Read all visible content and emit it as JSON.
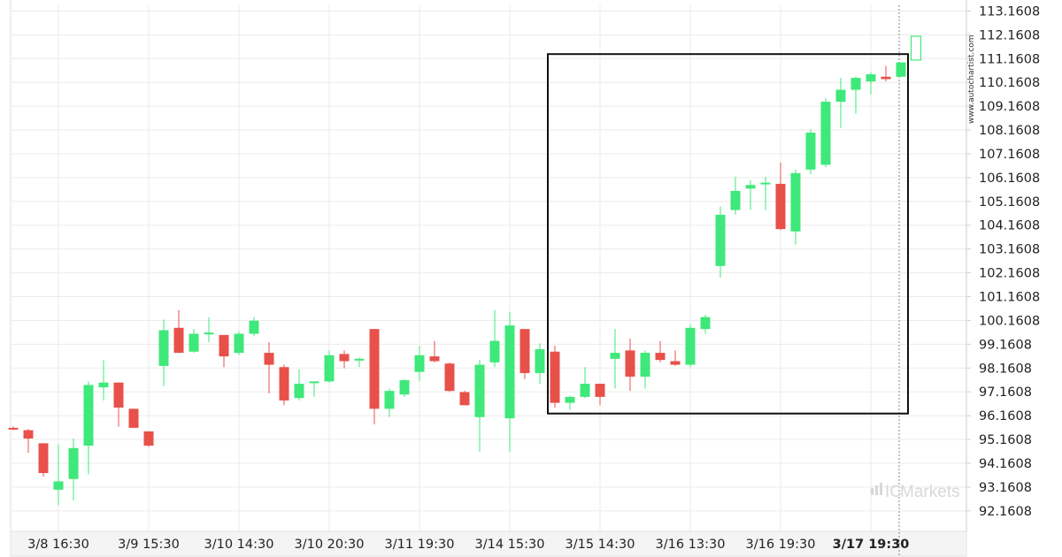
{
  "chart_data": {
    "type": "candlestick",
    "y_ticks": [
      "113.1608",
      "112.1608",
      "111.1608",
      "110.1608",
      "109.1608",
      "108.1608",
      "107.1608",
      "106.1608",
      "105.1608",
      "104.1608",
      "103.1608",
      "102.1608",
      "101.1608",
      "100.1608",
      "99.1608",
      "98.1608",
      "97.1608",
      "96.1608",
      "95.1608",
      "94.1608",
      "93.1608",
      "92.1608"
    ],
    "ylim": [
      91.3,
      113.4
    ],
    "x_ticks": [
      {
        "label": "3/8 16:30",
        "index": 3,
        "bold": false
      },
      {
        "label": "3/9 15:30",
        "index": 9,
        "bold": false
      },
      {
        "label": "3/10 14:30",
        "index": 15,
        "bold": false
      },
      {
        "label": "3/10 20:30",
        "index": 21,
        "bold": false
      },
      {
        "label": "3/11 19:30",
        "index": 27,
        "bold": false
      },
      {
        "label": "3/14 15:30",
        "index": 33,
        "bold": false
      },
      {
        "label": "3/15 14:30",
        "index": 39,
        "bold": false
      },
      {
        "label": "3/16 13:30",
        "index": 45,
        "bold": false
      },
      {
        "label": "3/16 19:30",
        "index": 51,
        "bold": false
      },
      {
        "label": "3/17 19:30",
        "index": 57,
        "bold": true
      }
    ],
    "candles": [
      {
        "o": 95.65,
        "h": 95.7,
        "l": 95.55,
        "c": 95.6
      },
      {
        "o": 95.55,
        "h": 95.6,
        "l": 94.6,
        "c": 95.2
      },
      {
        "o": 95.0,
        "h": 95.0,
        "l": 93.6,
        "c": 93.75
      },
      {
        "o": 93.05,
        "h": 94.95,
        "l": 92.4,
        "c": 93.4
      },
      {
        "o": 93.5,
        "h": 95.2,
        "l": 92.6,
        "c": 94.8
      },
      {
        "o": 94.9,
        "h": 97.6,
        "l": 93.7,
        "c": 97.45
      },
      {
        "o": 97.35,
        "h": 98.5,
        "l": 96.8,
        "c": 97.55
      },
      {
        "o": 97.55,
        "h": 97.55,
        "l": 95.7,
        "c": 96.5
      },
      {
        "o": 96.45,
        "h": 96.45,
        "l": 95.65,
        "c": 95.65
      },
      {
        "o": 95.5,
        "h": 95.5,
        "l": 94.85,
        "c": 94.9
      },
      {
        "o": 98.25,
        "h": 100.2,
        "l": 97.4,
        "c": 99.75
      },
      {
        "o": 99.85,
        "h": 100.6,
        "l": 98.8,
        "c": 98.8
      },
      {
        "o": 98.85,
        "h": 99.8,
        "l": 98.8,
        "c": 99.6
      },
      {
        "o": 99.65,
        "h": 100.3,
        "l": 99.25,
        "c": 99.65
      },
      {
        "o": 99.55,
        "h": 99.55,
        "l": 98.2,
        "c": 98.65
      },
      {
        "o": 98.8,
        "h": 99.7,
        "l": 98.7,
        "c": 99.6
      },
      {
        "o": 99.6,
        "h": 100.3,
        "l": 99.5,
        "c": 100.15
      },
      {
        "o": 98.8,
        "h": 99.25,
        "l": 97.1,
        "c": 98.3
      },
      {
        "o": 98.2,
        "h": 98.3,
        "l": 96.6,
        "c": 96.8
      },
      {
        "o": 96.9,
        "h": 98.1,
        "l": 96.8,
        "c": 97.5
      },
      {
        "o": 97.55,
        "h": 97.6,
        "l": 96.95,
        "c": 97.6
      },
      {
        "o": 97.6,
        "h": 98.9,
        "l": 97.55,
        "c": 98.7
      },
      {
        "o": 98.75,
        "h": 98.9,
        "l": 98.15,
        "c": 98.45
      },
      {
        "o": 98.5,
        "h": 98.6,
        "l": 98.2,
        "c": 98.55
      },
      {
        "o": 99.8,
        "h": 99.8,
        "l": 95.8,
        "c": 96.45
      },
      {
        "o": 96.45,
        "h": 97.3,
        "l": 96.1,
        "c": 97.2
      },
      {
        "o": 97.05,
        "h": 97.7,
        "l": 96.95,
        "c": 97.65
      },
      {
        "o": 98.0,
        "h": 99.1,
        "l": 97.6,
        "c": 98.7
      },
      {
        "o": 98.65,
        "h": 99.3,
        "l": 98.4,
        "c": 98.45
      },
      {
        "o": 98.35,
        "h": 98.4,
        "l": 97.15,
        "c": 97.2
      },
      {
        "o": 97.15,
        "h": 97.2,
        "l": 96.6,
        "c": 96.6
      },
      {
        "o": 96.1,
        "h": 98.5,
        "l": 94.65,
        "c": 98.3
      },
      {
        "o": 98.4,
        "h": 100.6,
        "l": 98.2,
        "c": 99.3
      },
      {
        "o": 96.05,
        "h": 100.5,
        "l": 94.65,
        "c": 99.95
      },
      {
        "o": 99.8,
        "h": 99.8,
        "l": 97.7,
        "c": 97.95
      },
      {
        "o": 97.95,
        "h": 99.2,
        "l": 97.5,
        "c": 98.95
      },
      {
        "o": 98.85,
        "h": 99.1,
        "l": 96.5,
        "c": 96.7
      },
      {
        "o": 96.7,
        "h": 97.0,
        "l": 96.4,
        "c": 96.95
      },
      {
        "o": 96.95,
        "h": 98.2,
        "l": 96.9,
        "c": 97.5
      },
      {
        "o": 97.5,
        "h": 97.5,
        "l": 96.6,
        "c": 96.95
      },
      {
        "o": 98.55,
        "h": 99.8,
        "l": 97.3,
        "c": 98.8
      },
      {
        "o": 98.9,
        "h": 99.4,
        "l": 97.2,
        "c": 97.8
      },
      {
        "o": 97.8,
        "h": 98.9,
        "l": 97.3,
        "c": 98.8
      },
      {
        "o": 98.8,
        "h": 99.3,
        "l": 98.4,
        "c": 98.5
      },
      {
        "o": 98.45,
        "h": 98.9,
        "l": 98.25,
        "c": 98.3
      },
      {
        "o": 98.3,
        "h": 100.0,
        "l": 98.2,
        "c": 99.85
      },
      {
        "o": 99.8,
        "h": 100.4,
        "l": 99.6,
        "c": 100.3
      },
      {
        "o": 102.45,
        "h": 104.95,
        "l": 101.95,
        "c": 104.6
      },
      {
        "o": 104.8,
        "h": 106.2,
        "l": 104.6,
        "c": 105.6
      },
      {
        "o": 105.7,
        "h": 106.05,
        "l": 104.8,
        "c": 105.85
      },
      {
        "o": 105.9,
        "h": 106.2,
        "l": 104.8,
        "c": 105.95
      },
      {
        "o": 105.9,
        "h": 106.8,
        "l": 103.95,
        "c": 104.0
      },
      {
        "o": 103.9,
        "h": 106.5,
        "l": 103.35,
        "c": 106.35
      },
      {
        "o": 106.5,
        "h": 108.2,
        "l": 106.3,
        "c": 108.05
      },
      {
        "o": 106.7,
        "h": 109.5,
        "l": 106.6,
        "c": 109.35
      },
      {
        "o": 109.35,
        "h": 110.35,
        "l": 108.25,
        "c": 109.85
      },
      {
        "o": 109.85,
        "h": 110.4,
        "l": 108.85,
        "c": 110.35
      },
      {
        "o": 110.2,
        "h": 110.6,
        "l": 109.65,
        "c": 110.5
      },
      {
        "o": 110.4,
        "h": 110.85,
        "l": 110.2,
        "c": 110.3
      },
      {
        "o": 110.4,
        "h": 111.0,
        "l": 110.4,
        "c": 111.0
      }
    ],
    "projection": {
      "index": 60,
      "o": 111.1,
      "c": 112.1,
      "color": "#3ee87a"
    },
    "highlight_box": {
      "start_index": 36,
      "end_index": 59,
      "y_low": 96.25,
      "y_high": 111.35
    },
    "current_time_index": 59,
    "colors": {
      "up": "#3ee87a",
      "down": "#e8504a",
      "box": "#111111",
      "grid": "#ebebeb",
      "axis": "#cfcfcf",
      "vline": "#888888"
    }
  },
  "watermark": {
    "side_text": "www.autochartist.com",
    "brand_prefix": "IC",
    "brand_suffix": "Markets"
  }
}
